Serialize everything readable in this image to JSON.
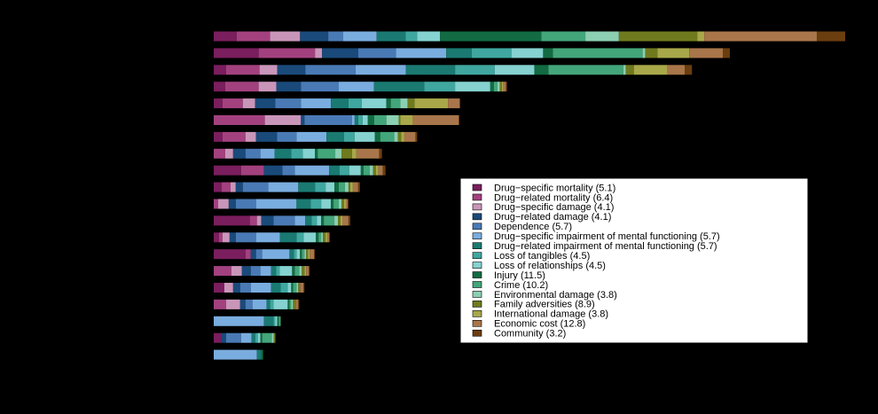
{
  "chart_data": {
    "type": "bar",
    "orientation": "horizontal",
    "stacked": true,
    "background": "#000000",
    "xlim": [
      0,
      72
    ],
    "grid": false,
    "legend": {
      "placement": "lower-right"
    },
    "categories": [
      "",
      "",
      "",
      "",
      "",
      "",
      "",
      "",
      "",
      "",
      "",
      "",
      "",
      "",
      "",
      "",
      "",
      "",
      "",
      ""
    ],
    "series": [
      {
        "name": "Drug−specific mortality (5.1)",
        "color": "#7a1e5e",
        "values": [
          2.6,
          5.1,
          1.4,
          1.3,
          1.0,
          0,
          1.0,
          0,
          3.1,
          0.9,
          0,
          4.1,
          0.6,
          3.6,
          0,
          1.2,
          0,
          0,
          0.9,
          0
        ]
      },
      {
        "name": "Drug−related mortality (6.4)",
        "color": "#a3417f",
        "values": [
          3.8,
          6.4,
          3.8,
          3.8,
          2.3,
          5.8,
          2.6,
          1.3,
          2.6,
          1.0,
          0.5,
          0.8,
          0.4,
          0.6,
          2.0,
          0,
          1.4,
          0,
          0,
          0
        ]
      },
      {
        "name": "Drug−specific damage (4.1)",
        "color": "#c996b9",
        "values": [
          3.4,
          0.8,
          2.0,
          2.0,
          1.4,
          4.1,
          1.2,
          0.9,
          0,
          0.6,
          1.2,
          0.5,
          0.8,
          0,
          1.2,
          1.0,
          1.6,
          0,
          0,
          0
        ]
      },
      {
        "name": "Drug−related damage (4.1)",
        "color": "#1a4a7a",
        "values": [
          3.2,
          4.1,
          3.2,
          2.8,
          2.3,
          0.4,
          2.4,
          1.4,
          2.1,
          0.8,
          0.8,
          1.4,
          0.7,
          0.6,
          1.0,
          0.8,
          0.6,
          0,
          0.5,
          0
        ]
      },
      {
        "name": "Dependence (5.7)",
        "color": "#4a7ab5",
        "values": [
          1.7,
          4.3,
          5.7,
          4.3,
          2.9,
          5.4,
          2.2,
          1.7,
          1.4,
          2.9,
          2.3,
          2.4,
          2.3,
          0.7,
          1.1,
          1.2,
          0.8,
          0,
          1.7,
          0
        ]
      },
      {
        "name": "Drug−specific impairment of mental functioning (5.7)",
        "color": "#7aaddf",
        "values": [
          3.8,
          5.7,
          5.7,
          4.0,
          3.4,
          0.3,
          3.4,
          1.6,
          3.9,
          3.4,
          4.6,
          1.2,
          2.7,
          3.1,
          1.2,
          2.3,
          1.6,
          5.7,
          1.2,
          4.9
        ]
      },
      {
        "name": "Drug−related impairment of mental functioning (5.7)",
        "color": "#1a7a72",
        "values": [
          3.3,
          2.9,
          5.6,
          5.7,
          2.0,
          0.4,
          2.0,
          1.9,
          1.2,
          1.9,
          1.6,
          0.7,
          1.9,
          0.5,
          0.6,
          1.1,
          0.4,
          1.1,
          0.4,
          0.5
        ]
      },
      {
        "name": "Loss of tangibles (4.5)",
        "color": "#3fa7a0",
        "values": [
          1.3,
          4.5,
          4.5,
          3.5,
          1.5,
          0.5,
          1.2,
          1.3,
          1.1,
          1.2,
          1.2,
          0.6,
          0.8,
          0.3,
          0.4,
          0.8,
          0.4,
          0.2,
          0.3,
          0
        ]
      },
      {
        "name": "Loss of relationships (4.5)",
        "color": "#85d2d0",
        "values": [
          2.6,
          3.6,
          4.5,
          4.0,
          2.8,
          0.6,
          2.3,
          1.4,
          1.3,
          1.0,
          1.1,
          0.5,
          1.4,
          0.4,
          1.4,
          0.4,
          1.6,
          0.2,
          0.3,
          0
        ]
      },
      {
        "name": "Injury (11.5)",
        "color": "#126b42",
        "values": [
          11.5,
          1.1,
          1.6,
          0.4,
          0.5,
          0.7,
          0.6,
          0.3,
          0.3,
          0.5,
          0.3,
          0.3,
          0.3,
          0.2,
          0.3,
          0.2,
          0.2,
          0.2,
          0.2,
          0.2
        ]
      },
      {
        "name": "Crime (10.2)",
        "color": "#43a57a",
        "values": [
          5.0,
          10.2,
          8.5,
          0.4,
          1.1,
          1.4,
          1.6,
          2.0,
          0.7,
          0.7,
          0.6,
          1.2,
          0.3,
          0.3,
          0.5,
          0.4,
          0.2,
          0.2,
          1.1,
          0
        ]
      },
      {
        "name": "Environmental damage (3.8)",
        "color": "#8ccfb2",
        "values": [
          3.8,
          0.3,
          0.3,
          0.3,
          0.8,
          1.4,
          0.4,
          0.7,
          0.4,
          0.4,
          0.3,
          0.4,
          0.2,
          0.2,
          0.3,
          0.2,
          0.2,
          0,
          0.2,
          0
        ]
      },
      {
        "name": "Family adversities (8.9)",
        "color": "#6f7a1e",
        "values": [
          8.9,
          1.4,
          0.9,
          0.2,
          0.8,
          0.2,
          0.4,
          1.2,
          0.3,
          0.2,
          0.3,
          0.3,
          0.3,
          0.2,
          0.3,
          0.2,
          0.3,
          0,
          0.2,
          0
        ]
      },
      {
        "name": "International damage (3.8)",
        "color": "#a8a84a",
        "values": [
          0.8,
          3.6,
          3.8,
          0.2,
          3.8,
          1.4,
          0.3,
          0.5,
          0.3,
          0.3,
          0.2,
          0.2,
          0.2,
          0.2,
          0.2,
          0,
          0,
          0,
          0,
          0
        ]
      },
      {
        "name": "Economic cost (12.8)",
        "color": "#a8764a",
        "values": [
          12.8,
          3.8,
          2.0,
          0.3,
          1.3,
          5.2,
          1.3,
          2.6,
          0.5,
          0.6,
          0.2,
          0.7,
          0.2,
          0.5,
          0.3,
          0.4,
          0.3,
          0,
          0,
          0
        ]
      },
      {
        "name": "Community (3.2)",
        "color": "#6b3e10",
        "values": [
          3.2,
          0.8,
          0.8,
          0.1,
          0.1,
          0.1,
          0.2,
          0.3,
          0.3,
          0.2,
          0.1,
          0.2,
          0.1,
          0.1,
          0.1,
          0.1,
          0.1,
          0,
          0,
          0
        ]
      }
    ]
  }
}
